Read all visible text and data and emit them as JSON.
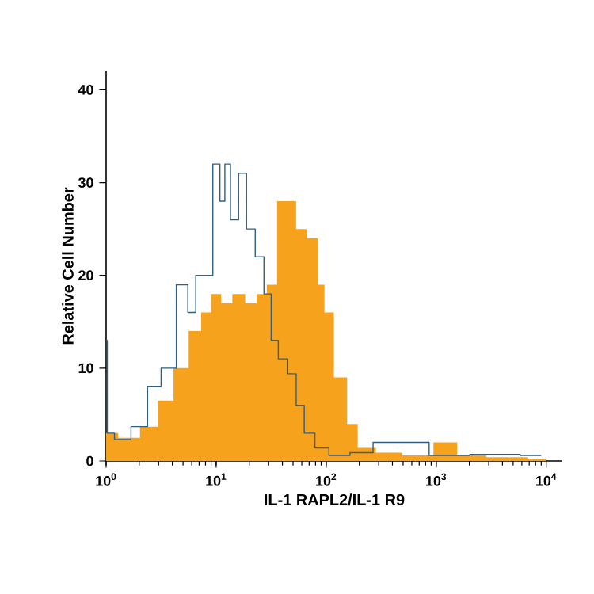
{
  "chart_data": {
    "type": "area",
    "xlabel": "IL-1 RAPL2/IL-1 R9",
    "ylabel": "Relative Cell Number",
    "log": "x",
    "xlim": [
      1,
      14000
    ],
    "ylim": [
      0,
      42
    ],
    "xticks": [
      {
        "value": 1,
        "label": "10$^{0}$"
      },
      {
        "value": 10,
        "label": "10$^{1}$"
      },
      {
        "value": 100,
        "label": "10$^{2}$"
      },
      {
        "value": 1000,
        "label": "10$^{3}$"
      },
      {
        "value": 10000,
        "label": "10$^{4}$"
      }
    ],
    "yticks": [
      0,
      10,
      20,
      30,
      40
    ],
    "grid": false,
    "series": [
      {
        "color": "#f7a21c",
        "x": [
          1,
          1.65,
          2.5,
          3.5,
          4.8,
          6.6,
          8.1,
          10,
          12.3,
          16,
          21,
          26,
          32,
          40,
          49,
          58,
          76,
          93,
          100,
          138,
          174,
          215,
          372,
          645,
          1380,
          1740,
          4680,
          10000
        ],
        "values": [
          3,
          2.5,
          3.7,
          6.5,
          10,
          14,
          16,
          18,
          17,
          18,
          17,
          18,
          19,
          28,
          28,
          25,
          24,
          19,
          16,
          9,
          4,
          1.4,
          0.9,
          0.6,
          2,
          0.6,
          0.4,
          0.2
        ]
      },
      {
        "type": "step",
        "color": "#2e5f84",
        "x": [
          1,
          1.05,
          1.35,
          2.1,
          2.7,
          3.7,
          5.1,
          6,
          7.1,
          8.7,
          10,
          11.7,
          12.3,
          14.8,
          17.3,
          20.6,
          24.9,
          29.7,
          33.7,
          40,
          50,
          57,
          70,
          89,
          126,
          215,
          331,
          676,
          1100,
          3715,
          9000
        ],
        "values": [
          13,
          3,
          2.3,
          3.7,
          8,
          10,
          19,
          16,
          20,
          20,
          32,
          28,
          32,
          26,
          31,
          25,
          22,
          18,
          13,
          11,
          9.4,
          6,
          3,
          1.4,
          0.6,
          0.9,
          2,
          2,
          0.6,
          0.7,
          0.6
        ]
      }
    ]
  }
}
